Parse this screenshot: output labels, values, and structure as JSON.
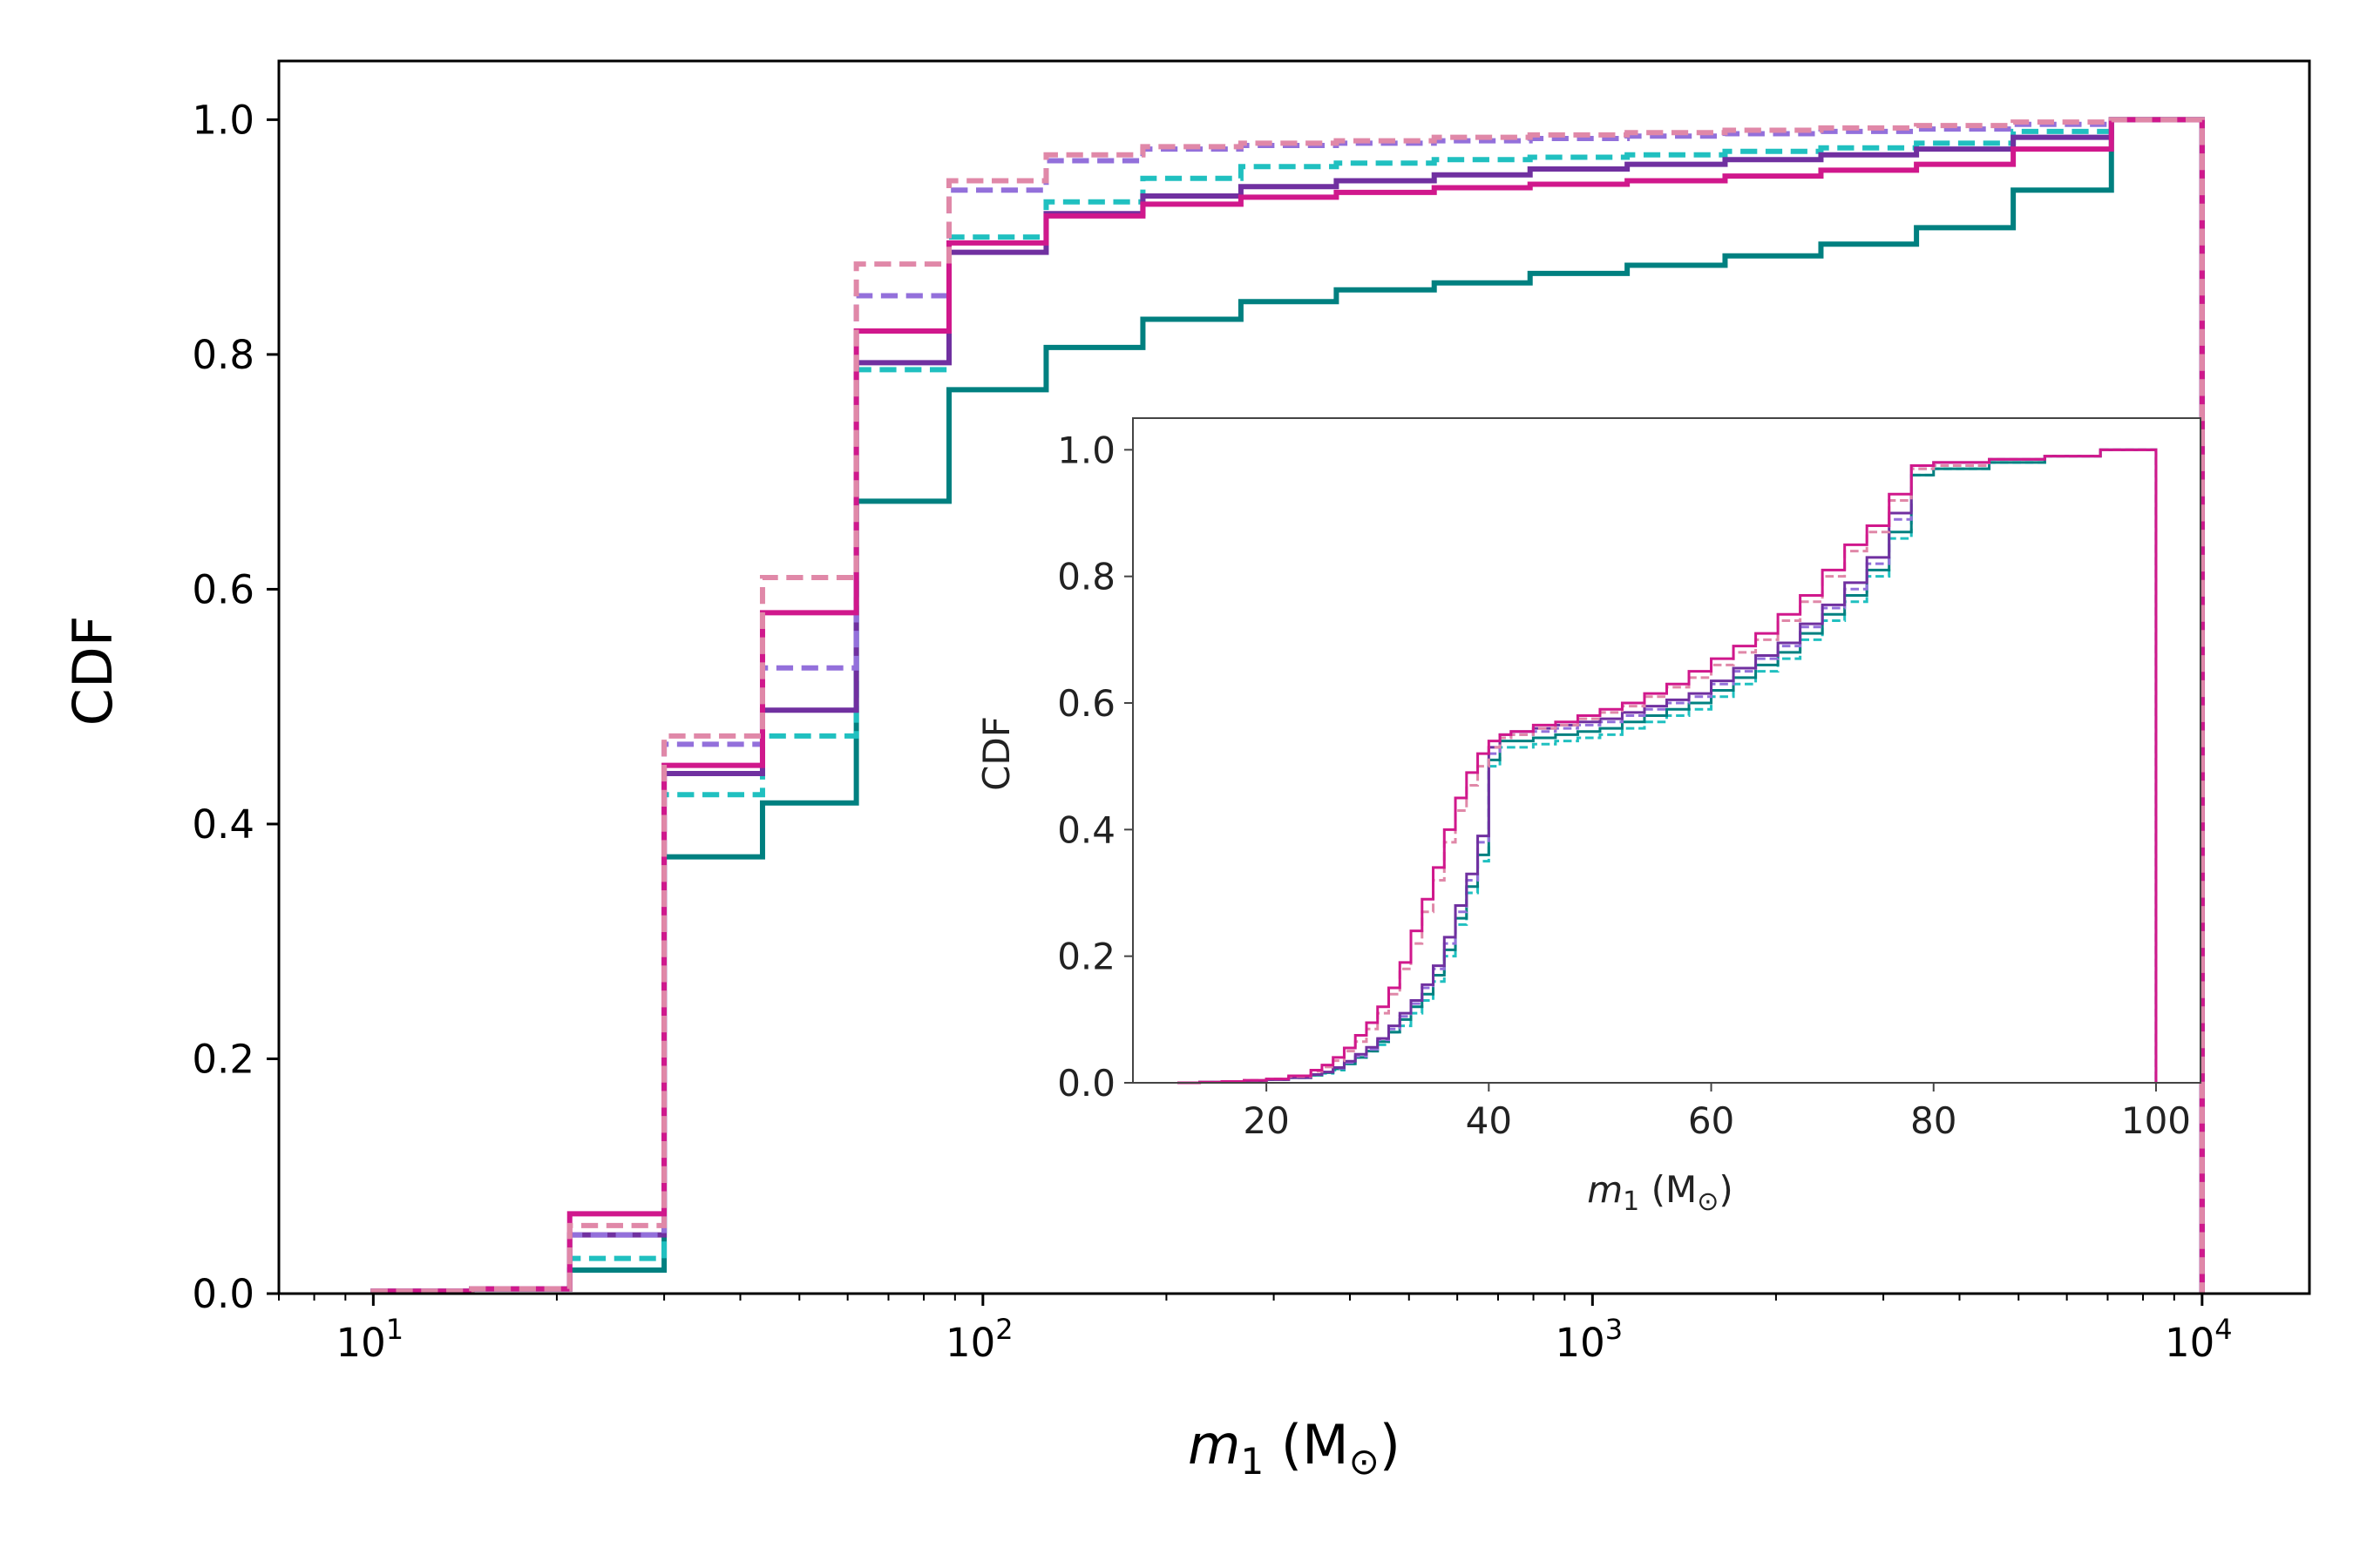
{
  "chart_data": [
    {
      "type": "line",
      "subtype": "step-cdf",
      "xlabel": "m_1 (M_⊙)",
      "ylabel": "CDF",
      "xscale": "log",
      "xlim": [
        7,
        15000
      ],
      "ylim": [
        0,
        1.05
      ],
      "grid": false,
      "xticks": [
        10,
        100,
        1000,
        10000
      ],
      "xtick_labels": [
        {
          "base": "10",
          "exp": "1"
        },
        {
          "base": "10",
          "exp": "2"
        },
        {
          "base": "10",
          "exp": "3"
        },
        {
          "base": "10",
          "exp": "4"
        }
      ],
      "yticks": [
        0.0,
        0.2,
        0.4,
        0.6,
        0.8,
        1.0
      ],
      "ytick_labels": [
        "0.0",
        "0.2",
        "0.4",
        "0.6",
        "0.8",
        "1.0"
      ],
      "x_edges": [
        10,
        14.5,
        21,
        30,
        43.5,
        62,
        88,
        127,
        183,
        265,
        380,
        550,
        790,
        1140,
        1650,
        2370,
        3400,
        4900,
        7100,
        10000
      ],
      "series": [
        {
          "color": "#008080",
          "dash": "solid",
          "width": 6,
          "values": [
            0.002,
            0.004,
            0.02,
            0.372,
            0.418,
            0.675,
            0.77,
            0.806,
            0.83,
            0.845,
            0.855,
            0.861,
            0.869,
            0.876,
            0.884,
            0.894,
            0.908,
            0.94,
            1.0
          ]
        },
        {
          "color": "#20c0c0",
          "dash": "dashed",
          "width": 6,
          "values": [
            0.002,
            0.004,
            0.03,
            0.425,
            0.475,
            0.787,
            0.9,
            0.93,
            0.95,
            0.96,
            0.963,
            0.966,
            0.968,
            0.97,
            0.973,
            0.976,
            0.98,
            0.99,
            1.0
          ]
        },
        {
          "color": "#7030a0",
          "dash": "solid",
          "width": 6,
          "values": [
            0.002,
            0.004,
            0.05,
            0.443,
            0.497,
            0.793,
            0.887,
            0.92,
            0.935,
            0.943,
            0.948,
            0.953,
            0.958,
            0.962,
            0.966,
            0.97,
            0.975,
            0.985,
            1.0
          ]
        },
        {
          "color": "#9370db",
          "dash": "dashed",
          "width": 6,
          "values": [
            0.002,
            0.004,
            0.05,
            0.468,
            0.533,
            0.85,
            0.94,
            0.965,
            0.975,
            0.978,
            0.98,
            0.982,
            0.984,
            0.986,
            0.988,
            0.99,
            0.992,
            0.996,
            1.0
          ]
        },
        {
          "color": "#d0188c",
          "dash": "solid",
          "width": 6,
          "values": [
            0.002,
            0.004,
            0.068,
            0.45,
            0.58,
            0.82,
            0.895,
            0.918,
            0.928,
            0.934,
            0.938,
            0.942,
            0.945,
            0.948,
            0.952,
            0.957,
            0.962,
            0.975,
            1.0
          ]
        },
        {
          "color": "#e088a8",
          "dash": "dashed",
          "width": 6,
          "values": [
            0.002,
            0.004,
            0.058,
            0.475,
            0.61,
            0.877,
            0.948,
            0.97,
            0.977,
            0.98,
            0.982,
            0.985,
            0.987,
            0.989,
            0.991,
            0.993,
            0.995,
            0.998,
            1.0
          ]
        }
      ]
    },
    {
      "type": "line",
      "subtype": "step-cdf-inset",
      "xlabel": "m_1 (M_⊙)",
      "ylabel": "CDF",
      "xscale": "linear",
      "xlim": [
        8,
        104
      ],
      "ylim": [
        0,
        1.05
      ],
      "grid": false,
      "xticks": [
        20,
        40,
        60,
        80,
        100
      ],
      "xtick_labels": [
        "20",
        "40",
        "60",
        "80",
        "100"
      ],
      "yticks": [
        0.0,
        0.2,
        0.4,
        0.6,
        0.8,
        1.0
      ],
      "ytick_labels": [
        "0.0",
        "0.2",
        "0.4",
        "0.6",
        "0.8",
        "1.0"
      ],
      "series": [
        {
          "color": "#20c0c0",
          "dash": "dashed",
          "width": 3,
          "x": [
            12,
            14,
            16,
            18,
            20,
            22,
            24,
            25,
            26,
            27,
            28,
            29,
            30,
            31,
            32,
            33,
            34,
            35,
            36,
            37,
            38,
            39,
            40,
            41,
            42,
            44,
            46,
            48,
            50,
            52,
            54,
            56,
            58,
            60,
            62,
            64,
            66,
            68,
            70,
            72,
            74,
            76,
            78,
            80,
            85,
            90,
            95,
            100
          ],
          "y": [
            0.0,
            0.001,
            0.002,
            0.003,
            0.005,
            0.008,
            0.012,
            0.015,
            0.02,
            0.03,
            0.04,
            0.05,
            0.06,
            0.08,
            0.09,
            0.11,
            0.13,
            0.16,
            0.2,
            0.25,
            0.3,
            0.35,
            0.5,
            0.53,
            0.53,
            0.535,
            0.54,
            0.545,
            0.55,
            0.56,
            0.57,
            0.58,
            0.59,
            0.61,
            0.63,
            0.65,
            0.67,
            0.7,
            0.73,
            0.76,
            0.8,
            0.86,
            0.96,
            0.97,
            0.98,
            0.99,
            1.0,
            1.0
          ]
        },
        {
          "color": "#008080",
          "dash": "solid",
          "width": 3,
          "x": [
            12,
            14,
            16,
            18,
            20,
            22,
            24,
            25,
            26,
            27,
            28,
            29,
            30,
            31,
            32,
            33,
            34,
            35,
            36,
            37,
            38,
            39,
            40,
            41,
            42,
            44,
            46,
            48,
            50,
            52,
            54,
            56,
            58,
            60,
            62,
            64,
            66,
            68,
            70,
            72,
            74,
            76,
            78,
            80,
            85,
            90,
            95,
            100
          ],
          "y": [
            0.0,
            0.001,
            0.002,
            0.003,
            0.005,
            0.008,
            0.012,
            0.016,
            0.022,
            0.03,
            0.04,
            0.05,
            0.065,
            0.08,
            0.1,
            0.12,
            0.14,
            0.17,
            0.21,
            0.26,
            0.31,
            0.36,
            0.51,
            0.54,
            0.54,
            0.545,
            0.55,
            0.555,
            0.56,
            0.57,
            0.58,
            0.59,
            0.6,
            0.62,
            0.64,
            0.66,
            0.68,
            0.71,
            0.74,
            0.77,
            0.81,
            0.87,
            0.96,
            0.97,
            0.98,
            0.99,
            1.0,
            1.0
          ]
        },
        {
          "color": "#9370db",
          "dash": "dashed",
          "width": 3,
          "x": [
            12,
            14,
            16,
            18,
            20,
            22,
            24,
            25,
            26,
            27,
            28,
            29,
            30,
            31,
            32,
            33,
            34,
            35,
            36,
            37,
            38,
            39,
            40,
            41,
            42,
            44,
            46,
            48,
            50,
            52,
            54,
            56,
            58,
            60,
            62,
            64,
            66,
            68,
            70,
            72,
            74,
            76,
            78,
            80,
            85,
            90,
            95,
            100
          ],
          "y": [
            0.0,
            0.001,
            0.002,
            0.003,
            0.005,
            0.008,
            0.013,
            0.017,
            0.023,
            0.032,
            0.042,
            0.053,
            0.068,
            0.085,
            0.105,
            0.125,
            0.15,
            0.18,
            0.22,
            0.27,
            0.32,
            0.38,
            0.52,
            0.545,
            0.55,
            0.555,
            0.56,
            0.565,
            0.57,
            0.58,
            0.59,
            0.6,
            0.61,
            0.63,
            0.65,
            0.67,
            0.69,
            0.72,
            0.75,
            0.78,
            0.82,
            0.89,
            0.97,
            0.975,
            0.985,
            0.99,
            1.0,
            1.0
          ]
        },
        {
          "color": "#7030a0",
          "dash": "solid",
          "width": 3,
          "x": [
            12,
            14,
            16,
            18,
            20,
            22,
            24,
            25,
            26,
            27,
            28,
            29,
            30,
            31,
            32,
            33,
            34,
            35,
            36,
            37,
            38,
            39,
            40,
            41,
            42,
            44,
            46,
            48,
            50,
            52,
            54,
            56,
            58,
            60,
            62,
            64,
            66,
            68,
            70,
            72,
            74,
            76,
            78,
            80,
            85,
            90,
            95,
            100
          ],
          "y": [
            0.0,
            0.001,
            0.002,
            0.003,
            0.005,
            0.008,
            0.013,
            0.017,
            0.024,
            0.034,
            0.045,
            0.056,
            0.07,
            0.09,
            0.11,
            0.13,
            0.155,
            0.185,
            0.23,
            0.28,
            0.33,
            0.39,
            0.53,
            0.55,
            0.555,
            0.56,
            0.565,
            0.57,
            0.575,
            0.585,
            0.595,
            0.605,
            0.615,
            0.635,
            0.655,
            0.675,
            0.695,
            0.725,
            0.755,
            0.79,
            0.83,
            0.9,
            0.975,
            0.98,
            0.985,
            0.99,
            1.0,
            1.0
          ]
        },
        {
          "color": "#e088a8",
          "dash": "dashed",
          "width": 3,
          "x": [
            12,
            14,
            16,
            18,
            20,
            22,
            24,
            25,
            26,
            27,
            28,
            29,
            30,
            31,
            32,
            33,
            34,
            35,
            36,
            37,
            38,
            39,
            40,
            41,
            42,
            44,
            46,
            48,
            50,
            52,
            54,
            56,
            58,
            60,
            62,
            64,
            66,
            68,
            70,
            72,
            74,
            76,
            78,
            80,
            85,
            90,
            95,
            100
          ],
          "y": [
            0.0,
            0.001,
            0.002,
            0.004,
            0.006,
            0.01,
            0.018,
            0.025,
            0.035,
            0.05,
            0.065,
            0.085,
            0.11,
            0.14,
            0.18,
            0.22,
            0.27,
            0.32,
            0.38,
            0.43,
            0.47,
            0.5,
            0.53,
            0.545,
            0.55,
            0.56,
            0.565,
            0.575,
            0.585,
            0.595,
            0.61,
            0.625,
            0.64,
            0.66,
            0.68,
            0.7,
            0.73,
            0.76,
            0.8,
            0.84,
            0.87,
            0.92,
            0.97,
            0.975,
            0.985,
            0.99,
            1.0,
            1.0
          ]
        },
        {
          "color": "#d0188c",
          "dash": "solid",
          "width": 3,
          "x": [
            12,
            14,
            16,
            18,
            20,
            22,
            24,
            25,
            26,
            27,
            28,
            29,
            30,
            31,
            32,
            33,
            34,
            35,
            36,
            37,
            38,
            39,
            40,
            41,
            42,
            44,
            46,
            48,
            50,
            52,
            54,
            56,
            58,
            60,
            62,
            64,
            66,
            68,
            70,
            72,
            74,
            76,
            78,
            80,
            85,
            90,
            95,
            100
          ],
          "y": [
            0.0,
            0.001,
            0.002,
            0.004,
            0.006,
            0.011,
            0.02,
            0.028,
            0.04,
            0.055,
            0.075,
            0.095,
            0.12,
            0.15,
            0.19,
            0.24,
            0.29,
            0.34,
            0.4,
            0.45,
            0.49,
            0.52,
            0.54,
            0.55,
            0.555,
            0.565,
            0.57,
            0.58,
            0.59,
            0.6,
            0.615,
            0.63,
            0.65,
            0.67,
            0.69,
            0.71,
            0.74,
            0.77,
            0.81,
            0.85,
            0.88,
            0.93,
            0.975,
            0.98,
            0.985,
            0.99,
            1.0,
            1.0
          ]
        }
      ]
    }
  ]
}
